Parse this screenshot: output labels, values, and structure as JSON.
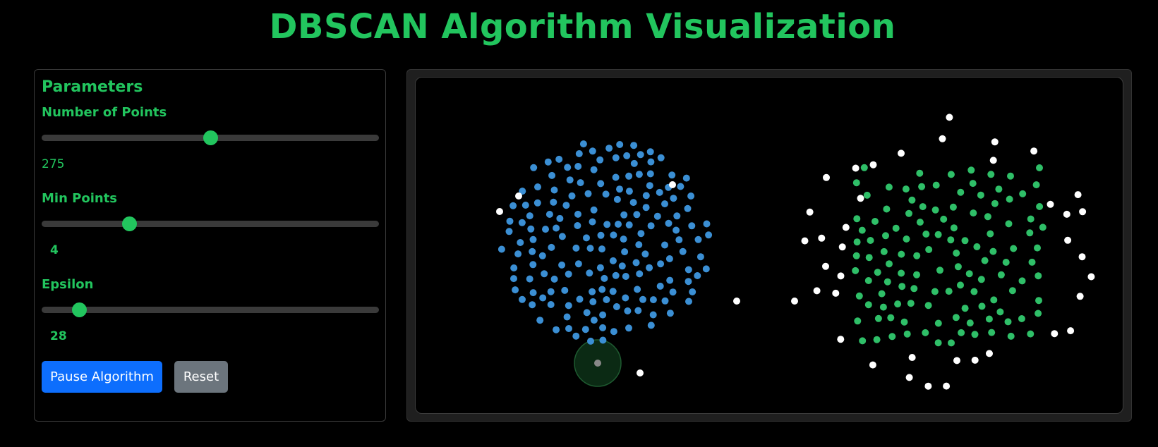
{
  "title": "DBSCAN Algorithm Visualization",
  "parameters": {
    "heading": "Parameters",
    "num_points": {
      "label": "Number of Points",
      "value": "275",
      "fraction": 0.5
    },
    "min_points": {
      "label": "Min Points",
      "value": "4",
      "fraction": 0.26
    },
    "epsilon": {
      "label": "Epsilon",
      "value": "28",
      "fraction": 0.11
    }
  },
  "buttons": {
    "pause_label": "Pause Algorithm",
    "reset_label": "Reset"
  },
  "colors": {
    "accent": "#22c55e",
    "cluster_1": "#3b8fd4",
    "cluster_2": "#2fbf68",
    "noise": "#ffffff",
    "current_point": "#888888",
    "epsilon_circle_fill": "#0b2a14",
    "epsilon_circle_stroke": "#1e5a30",
    "pause_button": "#0d6efd",
    "reset_button": "#6c757d"
  }
}
